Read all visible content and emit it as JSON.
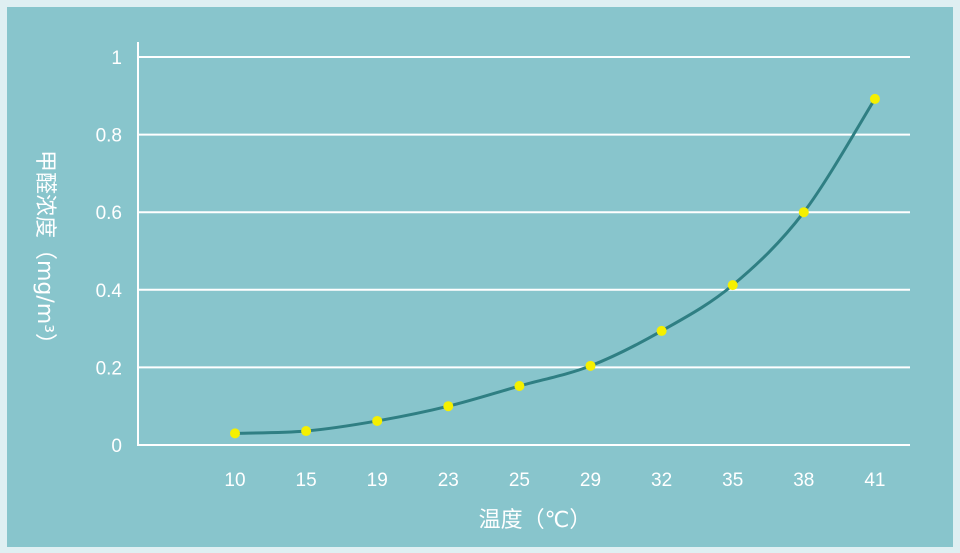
{
  "chart_data": {
    "type": "line",
    "xlabel": "温度（℃）",
    "ylabel": "甲醛浓度（mg/m³）",
    "categories": [
      "10",
      "15",
      "19",
      "23",
      "25",
      "29",
      "32",
      "35",
      "38",
      "41"
    ],
    "values": [
      0.03,
      0.036,
      0.062,
      0.1,
      0.152,
      0.204,
      0.294,
      0.412,
      0.6,
      0.892
    ],
    "ylim": [
      0,
      1
    ],
    "yticks": [
      "0",
      "0.2",
      "0.4",
      "0.6",
      "0.8",
      "1"
    ],
    "grid": true,
    "colors": {
      "background": "#88c5cc",
      "line": "#2f7f83",
      "marker": "#f5f000",
      "grid": "#ffffff"
    }
  }
}
